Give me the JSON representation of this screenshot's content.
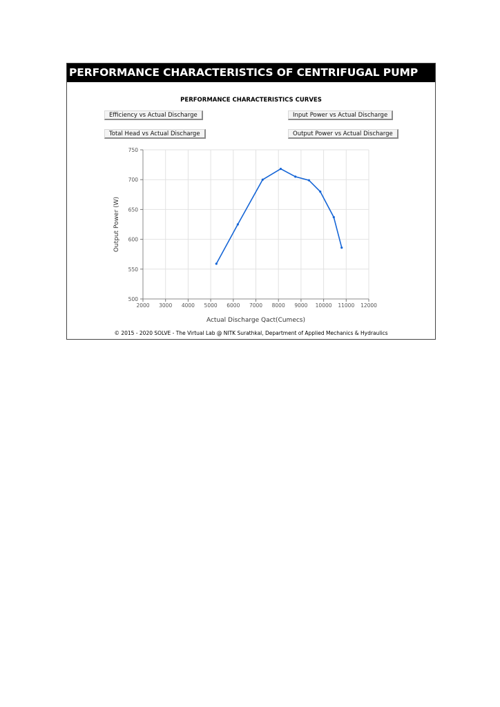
{
  "app": {
    "title": "PERFORMANCE CHARACTERISTICS OF CENTRIFUGAL PUMP",
    "subtitle": "PERFORMANCE CHARACTERISTICS CURVES",
    "footer": "© 2015 - 2020 SOLVE - The Virtual Lab @ NITK Surathkal, Department of Applied Mechanics & Hydraulics"
  },
  "buttons": {
    "efficiency": "Efficiency vs Actual Discharge",
    "input_power": "Input Power vs Actual Discharge",
    "total_head": "Total Head vs Actual Discharge",
    "output_power": "Output Power vs Actual Discharge"
  },
  "colors": {
    "line": "#1565d6",
    "grid": "#e2e2e2",
    "title_bg": "#000000"
  },
  "chart_data": {
    "type": "line",
    "title": "",
    "xlabel": "Actual Discharge Qact(Cumecs)",
    "ylabel": "Output Power (W)",
    "xlim": [
      2000,
      12000
    ],
    "ylim": [
      500,
      750
    ],
    "xticks": [
      2000,
      3000,
      4000,
      5000,
      6000,
      7000,
      8000,
      9000,
      10000,
      11000,
      12000
    ],
    "yticks": [
      500,
      550,
      600,
      650,
      700,
      750
    ],
    "grid": true,
    "series": [
      {
        "x": [
          5250,
          6200,
          7300,
          8100,
          8750,
          9350,
          9850,
          10450,
          10800
        ],
        "y": [
          559,
          625,
          700,
          718,
          705,
          699,
          680,
          637,
          586
        ]
      }
    ]
  }
}
